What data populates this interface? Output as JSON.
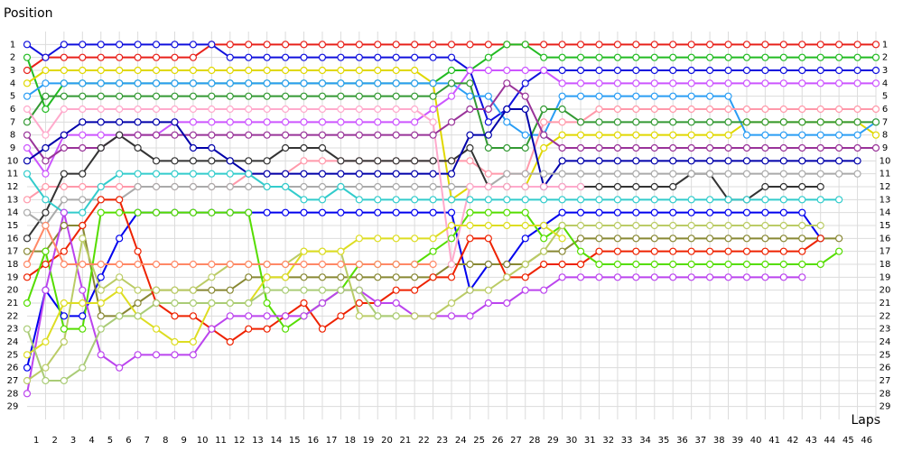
{
  "chart_data": {
    "type": "line",
    "y_label": "Position",
    "x_label": "Laps",
    "y_inverted": true,
    "grid": true,
    "x": [
      0,
      1,
      2,
      3,
      4,
      5,
      6,
      7,
      8,
      9,
      10,
      11,
      12,
      13,
      14,
      15,
      16,
      17,
      18,
      19,
      20,
      21,
      22,
      23,
      24,
      25,
      26,
      27,
      28,
      29,
      30,
      31,
      32,
      33,
      34,
      35,
      36,
      37,
      38,
      39,
      40,
      41,
      42,
      43,
      44,
      45,
      46
    ],
    "xlim": [
      0,
      46
    ],
    "xticks": [
      1,
      2,
      3,
      4,
      5,
      6,
      7,
      8,
      9,
      10,
      11,
      12,
      13,
      14,
      15,
      16,
      17,
      18,
      19,
      20,
      21,
      22,
      23,
      24,
      25,
      26,
      27,
      28,
      29,
      30,
      31,
      32,
      33,
      34,
      35,
      36,
      37,
      38,
      39,
      40,
      41,
      42,
      43,
      44,
      45,
      46
    ],
    "ylim": [
      0,
      30
    ],
    "yticks": [
      1,
      2,
      3,
      4,
      5,
      6,
      7,
      8,
      9,
      10,
      11,
      12,
      13,
      14,
      15,
      16,
      17,
      18,
      19,
      20,
      21,
      22,
      23,
      24,
      25,
      26,
      27,
      28,
      29
    ],
    "series": [
      {
        "color": "#e8201a",
        "values": [
          3,
          2,
          2,
          2,
          2,
          2,
          2,
          2,
          2,
          2,
          1,
          1,
          1,
          1,
          1,
          1,
          1,
          1,
          1,
          1,
          1,
          1,
          1,
          1,
          1,
          1,
          1,
          1,
          1,
          1,
          1,
          1,
          1,
          1,
          1,
          1,
          1,
          1,
          1,
          1,
          1,
          1,
          1,
          1,
          1,
          1,
          1
        ]
      },
      {
        "color": "#22bb22",
        "values": [
          2,
          6,
          4,
          4,
          4,
          4,
          4,
          4,
          4,
          4,
          4,
          4,
          4,
          4,
          4,
          4,
          4,
          4,
          4,
          4,
          4,
          4,
          4,
          3,
          3,
          2,
          1,
          1,
          2,
          2,
          2,
          2,
          2,
          2,
          2,
          2,
          2,
          2,
          2,
          2,
          2,
          2,
          2,
          2,
          2,
          2,
          2
        ]
      },
      {
        "color": "#1010dd",
        "values": [
          1,
          2,
          1,
          1,
          1,
          1,
          1,
          1,
          1,
          1,
          1,
          2,
          2,
          2,
          2,
          2,
          2,
          2,
          2,
          2,
          2,
          2,
          2,
          2,
          3,
          7,
          6,
          4,
          3,
          3,
          3,
          3,
          3,
          3,
          3,
          3,
          3,
          3,
          3,
          3,
          3,
          3,
          3,
          3,
          3,
          3,
          3
        ]
      },
      {
        "color": "#e0d800",
        "values": [
          4,
          3,
          3,
          3,
          3,
          3,
          3,
          3,
          3,
          3,
          3,
          3,
          3,
          3,
          3,
          3,
          3,
          3,
          3,
          3,
          3,
          3,
          4,
          13,
          12,
          12,
          12,
          12,
          9,
          8,
          8,
          8,
          8,
          8,
          8,
          8,
          8,
          8,
          8,
          7,
          7,
          7,
          7,
          7,
          7,
          7,
          8
        ]
      },
      {
        "color": "#2a9df4",
        "values": [
          5,
          4,
          4,
          4,
          4,
          4,
          4,
          4,
          4,
          4,
          4,
          4,
          4,
          4,
          4,
          4,
          4,
          4,
          4,
          4,
          4,
          4,
          4,
          4,
          5,
          5,
          7,
          8,
          8,
          5,
          5,
          5,
          5,
          5,
          5,
          5,
          5,
          5,
          5,
          8,
          8,
          8,
          8,
          8,
          8,
          8,
          7
        ]
      },
      {
        "color": "#cc55ff",
        "values": [
          9,
          11,
          8,
          8,
          8,
          8,
          8,
          8,
          7,
          7,
          7,
          7,
          7,
          7,
          7,
          7,
          7,
          7,
          7,
          7,
          7,
          7,
          6,
          5,
          3,
          3,
          3,
          3,
          3,
          4,
          4,
          4,
          4,
          4,
          4,
          4,
          4,
          4,
          4,
          4,
          4,
          4,
          4,
          4,
          4,
          4,
          4
        ]
      },
      {
        "color": "#ff99aa",
        "values": [
          13,
          12,
          12,
          12,
          12,
          12,
          12,
          12,
          12,
          12,
          12,
          12,
          11,
          11,
          11,
          10,
          10,
          10,
          10,
          10,
          10,
          10,
          10,
          10,
          10,
          11,
          11,
          11,
          7,
          7,
          7,
          6,
          6,
          6,
          6,
          6,
          6,
          6,
          6,
          6,
          6,
          6,
          6,
          6,
          6,
          6,
          6
        ]
      },
      {
        "color": "#339933",
        "values": [
          7,
          5,
          5,
          5,
          5,
          5,
          5,
          5,
          5,
          5,
          5,
          5,
          5,
          5,
          5,
          5,
          5,
          5,
          5,
          5,
          5,
          5,
          5,
          4,
          4,
          9,
          9,
          9,
          6,
          6,
          7,
          7,
          7,
          7,
          7,
          7,
          7,
          7,
          7,
          7,
          7,
          7,
          7,
          7,
          7,
          7,
          7
        ]
      },
      {
        "color": "#993399",
        "values": [
          8,
          10,
          9,
          9,
          9,
          8,
          8,
          8,
          8,
          8,
          8,
          8,
          8,
          8,
          8,
          8,
          8,
          8,
          8,
          8,
          8,
          8,
          8,
          7,
          6,
          6,
          4,
          5,
          8,
          9,
          9,
          9,
          9,
          9,
          9,
          9,
          9,
          9,
          9,
          9,
          9,
          9,
          9,
          9,
          9,
          9,
          9
        ]
      },
      {
        "color": "#333333",
        "values": [
          16,
          14,
          11,
          11,
          9,
          8,
          9,
          10,
          10,
          10,
          10,
          10,
          10,
          10,
          9,
          9,
          9,
          10,
          10,
          10,
          10,
          10,
          10,
          10,
          9,
          12,
          12,
          12,
          12,
          12,
          12,
          12,
          12,
          12,
          12,
          12,
          11,
          11,
          13,
          13,
          12,
          12,
          12,
          12,
          null,
          null,
          null
        ]
      },
      {
        "color": "#0000aa",
        "values": [
          10,
          9,
          8,
          7,
          7,
          7,
          7,
          7,
          7,
          9,
          9,
          10,
          11,
          11,
          11,
          11,
          11,
          11,
          11,
          11,
          11,
          11,
          11,
          11,
          8,
          8,
          6,
          6,
          12,
          10,
          10,
          10,
          10,
          10,
          10,
          10,
          10,
          10,
          10,
          10,
          10,
          10,
          10,
          10,
          10,
          10,
          null
        ]
      },
      {
        "color": "#aaaaaa",
        "values": [
          14,
          15,
          13,
          13,
          13,
          13,
          12,
          12,
          12,
          12,
          12,
          12,
          12,
          12,
          12,
          12,
          12,
          12,
          12,
          12,
          12,
          12,
          12,
          12,
          12,
          12,
          11,
          11,
          11,
          11,
          11,
          11,
          11,
          11,
          11,
          11,
          11,
          11,
          11,
          11,
          11,
          11,
          11,
          11,
          11,
          11,
          null
        ]
      },
      {
        "color": "#33cccc",
        "values": [
          11,
          13,
          14,
          14,
          12,
          11,
          11,
          11,
          11,
          11,
          11,
          11,
          11,
          12,
          12,
          13,
          13,
          12,
          13,
          13,
          13,
          13,
          13,
          13,
          13,
          13,
          13,
          13,
          13,
          13,
          13,
          13,
          13,
          13,
          13,
          13,
          13,
          13,
          13,
          13,
          13,
          13,
          13,
          13,
          13,
          null,
          null
        ]
      },
      {
        "color": "#0000ee",
        "values": [
          26,
          20,
          22,
          22,
          19,
          16,
          14,
          14,
          14,
          14,
          14,
          14,
          14,
          14,
          14,
          14,
          14,
          14,
          14,
          14,
          14,
          14,
          14,
          14,
          20,
          18,
          18,
          16,
          15,
          14,
          14,
          14,
          14,
          14,
          14,
          14,
          14,
          14,
          14,
          14,
          14,
          14,
          14,
          16,
          null,
          null,
          null
        ]
      },
      {
        "color": "#888833",
        "values": [
          17,
          17,
          15,
          15,
          22,
          22,
          21,
          20,
          20,
          20,
          20,
          20,
          19,
          19,
          19,
          19,
          19,
          19,
          19,
          19,
          19,
          19,
          19,
          18,
          18,
          18,
          18,
          18,
          17,
          17,
          16,
          16,
          16,
          16,
          16,
          16,
          16,
          16,
          16,
          16,
          16,
          16,
          16,
          16,
          16,
          null,
          null
        ]
      },
      {
        "color": "#ee2200",
        "values": [
          19,
          18,
          17,
          15,
          13,
          13,
          17,
          21,
          22,
          22,
          23,
          24,
          23,
          23,
          22,
          21,
          23,
          22,
          21,
          21,
          20,
          20,
          19,
          19,
          16,
          16,
          19,
          19,
          18,
          18,
          18,
          17,
          17,
          17,
          17,
          17,
          17,
          17,
          17,
          17,
          17,
          17,
          17,
          16,
          null,
          null,
          null
        ]
      },
      {
        "color": "#55dd00",
        "values": [
          21,
          17,
          23,
          23,
          14,
          14,
          14,
          14,
          14,
          14,
          14,
          14,
          14,
          21,
          23,
          22,
          21,
          20,
          18,
          18,
          18,
          18,
          17,
          16,
          14,
          14,
          14,
          14,
          16,
          15,
          17,
          18,
          18,
          18,
          18,
          18,
          18,
          18,
          18,
          18,
          18,
          18,
          18,
          18,
          17,
          null,
          null
        ]
      },
      {
        "color": "#bb44ee",
        "values": [
          28,
          20,
          14,
          20,
          25,
          26,
          25,
          25,
          25,
          25,
          23,
          22,
          22,
          22,
          22,
          22,
          21,
          20,
          20,
          21,
          21,
          22,
          22,
          22,
          22,
          21,
          21,
          20,
          20,
          19,
          19,
          19,
          19,
          19,
          19,
          19,
          19,
          19,
          19,
          19,
          19,
          19,
          19,
          null,
          null,
          null,
          null
        ]
      },
      {
        "color": "#bbcc66",
        "values": [
          27,
          26,
          24,
          16,
          20,
          19,
          20,
          20,
          20,
          20,
          19,
          18,
          18,
          18,
          18,
          17,
          17,
          17,
          22,
          22,
          22,
          22,
          22,
          21,
          20,
          20,
          19,
          18,
          17,
          15,
          15,
          15,
          15,
          15,
          15,
          15,
          15,
          15,
          15,
          15,
          15,
          15,
          15,
          15,
          null,
          null,
          null
        ]
      },
      {
        "color": "#ffaacc",
        "values": [
          6,
          8,
          6,
          6,
          6,
          6,
          6,
          6,
          6,
          6,
          6,
          6,
          6,
          6,
          6,
          6,
          6,
          6,
          6,
          6,
          6,
          6,
          7,
          18,
          12,
          12,
          12,
          12,
          12,
          12,
          12,
          null,
          null,
          null,
          null,
          null,
          null,
          null,
          null,
          null,
          null,
          null,
          null,
          null,
          null,
          null,
          null
        ]
      },
      {
        "color": "#dddd22",
        "values": [
          25,
          24,
          21,
          21,
          21,
          20,
          22,
          23,
          24,
          24,
          21,
          21,
          21,
          19,
          19,
          17,
          17,
          17,
          16,
          16,
          16,
          16,
          16,
          15,
          15,
          15,
          15,
          15,
          15,
          16,
          null,
          null,
          null,
          null,
          null,
          null,
          null,
          null,
          null,
          null,
          null,
          null,
          null,
          null,
          null,
          null,
          null
        ]
      },
      {
        "color": "#aacc77",
        "values": [
          23,
          27,
          27,
          26,
          23,
          22,
          22,
          21,
          21,
          21,
          21,
          21,
          21,
          20,
          20,
          20,
          20,
          20,
          20,
          22,
          22,
          null,
          null,
          null,
          null,
          null,
          null,
          null,
          null,
          null,
          null,
          null,
          null,
          null,
          null,
          null,
          null,
          null,
          null,
          null,
          null,
          null,
          null,
          null,
          null,
          null,
          null
        ]
      },
      {
        "color": "#ff8866",
        "values": [
          18,
          15,
          18,
          18,
          18,
          18,
          18,
          18,
          18,
          18,
          18,
          18,
          18,
          18,
          18,
          18,
          18,
          18,
          18,
          18,
          18,
          18,
          18,
          null,
          null,
          null,
          null,
          null,
          null,
          null,
          null,
          null,
          null,
          null,
          null,
          null,
          null,
          null,
          null,
          null,
          null,
          null,
          null,
          null,
          null,
          null,
          null
        ]
      }
    ]
  }
}
